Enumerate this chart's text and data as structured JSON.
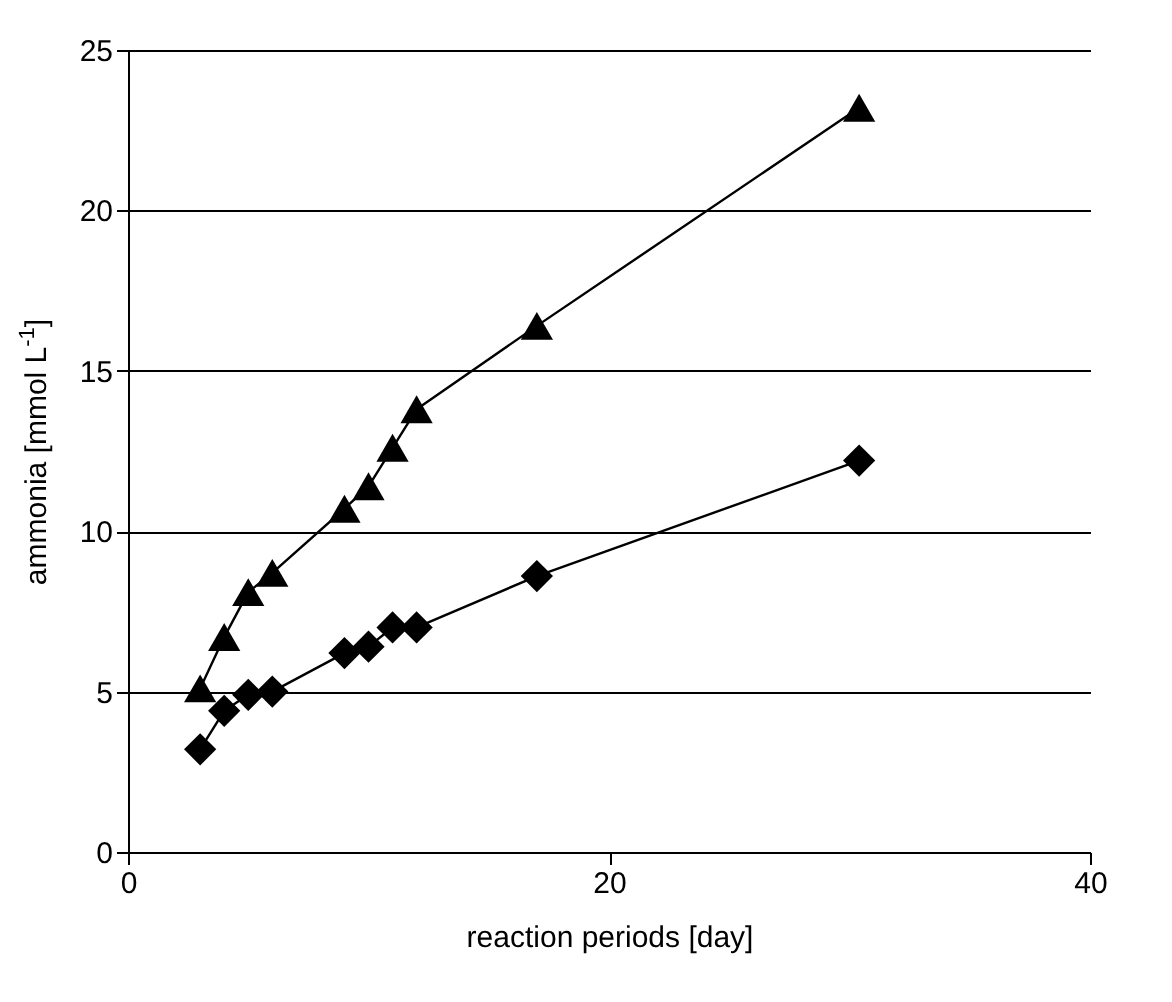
{
  "chart_data": {
    "type": "line",
    "xlabel": "reaction periods [day]",
    "ylabel": "ammonia [mmol L$^{-1}$]",
    "xlim": [
      0,
      40
    ],
    "xticks": [
      0,
      20,
      40
    ],
    "ylim": [
      0,
      25
    ],
    "yticks": [
      0,
      5,
      10,
      15,
      20,
      25
    ],
    "grid": "y",
    "series": [
      {
        "color": "#000000",
        "marker": "triangle",
        "x": [
          3,
          4,
          5,
          6,
          9,
          10,
          11,
          12,
          17,
          30.4
        ],
        "values": [
          5.1,
          6.7,
          8.1,
          8.7,
          10.7,
          11.4,
          12.6,
          13.8,
          16.4,
          23.2
        ]
      },
      {
        "color": "#000000",
        "marker": "diamond",
        "x": [
          3,
          4,
          5,
          6,
          9,
          10,
          11,
          12,
          17,
          30.4
        ],
        "values": [
          3.2,
          4.4,
          4.9,
          5.0,
          6.2,
          6.4,
          7.0,
          7.0,
          8.6,
          12.2
        ]
      }
    ]
  }
}
